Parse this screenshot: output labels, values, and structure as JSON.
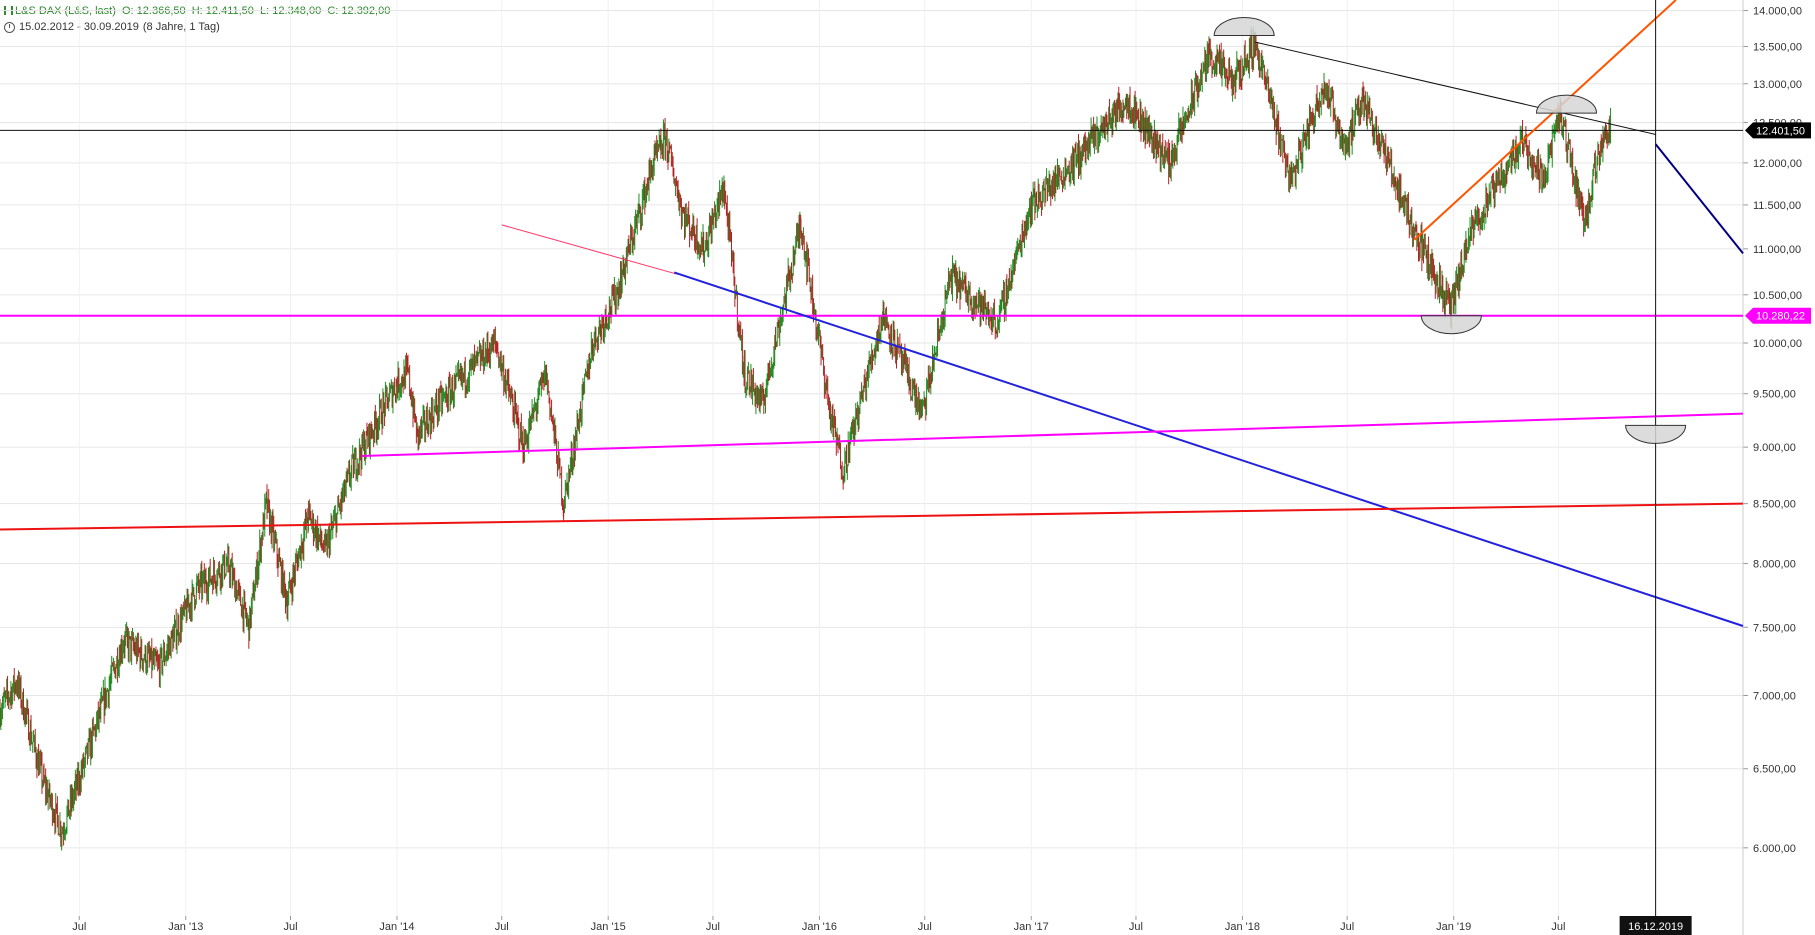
{
  "header": {
    "instrument": "L&S DAX (L&S, last)",
    "open": "O: 12.366,50",
    "high": "H: 12.411,50",
    "low": "L: 12.348,00",
    "close": "C: 12.392,00",
    "range": "15.02.2012 - 30.09.2019",
    "span": "(8 Jahre, 1 Tag)",
    "instrument_icon": "ohlc-bars-icon",
    "range_icon": "clock-icon"
  },
  "chart_data": {
    "type": "candlestick",
    "price_axis": {
      "range": [
        5600,
        14150
      ],
      "scale": "log",
      "ticks": [
        {
          "value": 14000,
          "label": "14.000,00"
        },
        {
          "value": 13500,
          "label": "13.500,00"
        },
        {
          "value": 13000,
          "label": "13.000,00"
        },
        {
          "value": 12500,
          "label": "12.500,00"
        },
        {
          "value": 12000,
          "label": "12.000,00"
        },
        {
          "value": 11500,
          "label": "11.500,00"
        },
        {
          "value": 11000,
          "label": "11.000,00"
        },
        {
          "value": 10500,
          "label": "10.500,00"
        },
        {
          "value": 10000,
          "label": "10.000,00"
        },
        {
          "value": 9500,
          "label": "9.500,00"
        },
        {
          "value": 9000,
          "label": "9.000,00"
        },
        {
          "value": 8500,
          "label": "8.500,00"
        },
        {
          "value": 8000,
          "label": "8.000,00"
        },
        {
          "value": 7500,
          "label": "7.500,00"
        },
        {
          "value": 7000,
          "label": "7.000,00"
        },
        {
          "value": 6500,
          "label": "6.500,00"
        },
        {
          "value": 6000,
          "label": "6.000,00"
        }
      ]
    },
    "time_axis": {
      "range": [
        "2012-02-15",
        "2020-05-15"
      ],
      "ticks": [
        {
          "date": "2012-07-01",
          "label": "Jul"
        },
        {
          "date": "2013-01-01",
          "label": "Jan '13"
        },
        {
          "date": "2013-07-01",
          "label": "Jul"
        },
        {
          "date": "2014-01-01",
          "label": "Jan '14"
        },
        {
          "date": "2014-07-01",
          "label": "Jul"
        },
        {
          "date": "2015-01-01",
          "label": "Jan '15"
        },
        {
          "date": "2015-07-01",
          "label": "Jul"
        },
        {
          "date": "2016-01-01",
          "label": "Jan '16"
        },
        {
          "date": "2016-07-01",
          "label": "Jul"
        },
        {
          "date": "2017-01-01",
          "label": "Jan '17"
        },
        {
          "date": "2017-07-01",
          "label": "Jul"
        },
        {
          "date": "2018-01-01",
          "label": "Jan '18"
        },
        {
          "date": "2018-07-01",
          "label": "Jul"
        },
        {
          "date": "2019-01-01",
          "label": "Jan '19"
        },
        {
          "date": "2019-07-01",
          "label": "Jul"
        }
      ]
    },
    "price_path": [
      [
        "2012-02-15",
        6900
      ],
      [
        "2012-03-15",
        7100
      ],
      [
        "2012-05-01",
        6400
      ],
      [
        "2012-06-01",
        6100
      ],
      [
        "2012-07-15",
        6600
      ],
      [
        "2012-09-15",
        7400
      ],
      [
        "2012-11-15",
        7200
      ],
      [
        "2013-01-20",
        7800
      ],
      [
        "2013-03-15",
        8000
      ],
      [
        "2013-04-20",
        7500
      ],
      [
        "2013-05-20",
        8500
      ],
      [
        "2013-06-25",
        7700
      ],
      [
        "2013-08-01",
        8400
      ],
      [
        "2013-08-30",
        8100
      ],
      [
        "2013-10-15",
        8800
      ],
      [
        "2013-12-31",
        9600
      ],
      [
        "2014-01-20",
        9700
      ],
      [
        "2014-02-05",
        9100
      ],
      [
        "2014-03-15",
        9400
      ],
      [
        "2014-06-20",
        10000
      ],
      [
        "2014-08-08",
        9000
      ],
      [
        "2014-09-15",
        9700
      ],
      [
        "2014-10-16",
        8500
      ],
      [
        "2014-12-05",
        10000
      ],
      [
        "2015-01-15",
        10500
      ],
      [
        "2015-03-20",
        12000
      ],
      [
        "2015-04-10",
        12300
      ],
      [
        "2015-05-10",
        11400
      ],
      [
        "2015-06-15",
        11000
      ],
      [
        "2015-07-20",
        11700
      ],
      [
        "2015-08-24",
        9700
      ],
      [
        "2015-09-24",
        9400
      ],
      [
        "2015-11-30",
        11300
      ],
      [
        "2016-01-20",
        9300
      ],
      [
        "2016-02-11",
        8800
      ],
      [
        "2016-04-20",
        10300
      ],
      [
        "2016-06-27",
        9300
      ],
      [
        "2016-08-15",
        10700
      ],
      [
        "2016-11-04",
        10200
      ],
      [
        "2016-12-31",
        11500
      ],
      [
        "2017-03-15",
        12000
      ],
      [
        "2017-06-15",
        12800
      ],
      [
        "2017-08-28",
        12000
      ],
      [
        "2017-11-05",
        13400
      ],
      [
        "2017-12-15",
        13000
      ],
      [
        "2018-01-23",
        13550
      ],
      [
        "2018-03-26",
        11800
      ],
      [
        "2018-05-22",
        13000
      ],
      [
        "2018-06-28",
        12200
      ],
      [
        "2018-07-30",
        12800
      ],
      [
        "2018-10-25",
        11200
      ],
      [
        "2018-12-27",
        10350
      ],
      [
        "2019-02-01",
        11200
      ],
      [
        "2019-04-30",
        12300
      ],
      [
        "2019-06-03",
        11800
      ],
      [
        "2019-07-04",
        12600
      ],
      [
        "2019-08-15",
        11300
      ],
      [
        "2019-09-19",
        12450
      ],
      [
        "2019-09-30",
        12392
      ]
    ],
    "lines": [
      {
        "name": "horizontal-price-line",
        "color": "#111111",
        "p1": [
          "2012-02-15",
          12401.5
        ],
        "p2": [
          "2020-05-15",
          12401.5
        ]
      },
      {
        "name": "horizontal-support-line",
        "color": "#ff00ff",
        "p1": [
          "2012-02-15",
          10280.22
        ],
        "p2": [
          "2020-05-15",
          10280.22
        ]
      },
      {
        "name": "black-downtrend-line",
        "color": "#111111",
        "p1": [
          "2018-01-23",
          13560
        ],
        "p2": [
          "2019-12-16",
          12350
        ]
      },
      {
        "name": "navy-downtrend-extension",
        "color": "#000080",
        "p1": [
          "2019-12-16",
          12230
        ],
        "p2": [
          "2020-05-15",
          10950
        ]
      },
      {
        "name": "orange-uptrend-line",
        "color": "#ff5500",
        "p1": [
          "2018-10-25",
          11100
        ],
        "p2": [
          "2020-01-20",
          14150
        ]
      },
      {
        "name": "pink-trend-line",
        "color": "#ff3366",
        "p1": [
          "2014-07-01",
          11270
        ],
        "p2": [
          "2015-05-01",
          10720
        ]
      },
      {
        "name": "blue-downtrend-line",
        "color": "#2222dd",
        "p1": [
          "2015-04-25",
          10740
        ],
        "p2": [
          "2020-05-15",
          7510
        ]
      },
      {
        "name": "magenta-rising-line",
        "color": "#ff00ff",
        "p1": [
          "2013-11-01",
          8920
        ],
        "p2": [
          "2020-05-15",
          9310
        ]
      },
      {
        "name": "red-rising-line",
        "color": "#ee1111",
        "p1": [
          "2012-02-15",
          8280
        ],
        "p2": [
          "2020-05-15",
          8500
        ]
      },
      {
        "name": "crosshair-line",
        "color": "#111111",
        "p1": [
          "2019-12-16",
          5600
        ],
        "p2": [
          "2019-12-16",
          14150
        ]
      }
    ],
    "arc_markers": [
      {
        "name": "top-arc-2018",
        "date": "2018-01-04",
        "value": 13650,
        "orientation": "up"
      },
      {
        "name": "top-arc-2019",
        "date": "2019-07-15",
        "value": 12620,
        "orientation": "up"
      },
      {
        "name": "bottom-arc-2018",
        "date": "2018-12-28",
        "value": 10280,
        "orientation": "down"
      },
      {
        "name": "bottom-arc-2019",
        "date": "2019-12-16",
        "value": 9200,
        "orientation": "down"
      }
    ],
    "price_badges": [
      {
        "name": "last-price-badge",
        "value": 12401.5,
        "label": "12.401,50",
        "color": "#000000"
      },
      {
        "name": "support-price-badge",
        "value": 10280.22,
        "label": "10.280,22",
        "color": "#ff00ff"
      }
    ],
    "crosshair_date_label": "16.12.2019",
    "colors": {
      "up": "#1f8a1f",
      "down": "#b22222",
      "grid": "#e6e6e6",
      "axis_text": "#333333"
    }
  }
}
